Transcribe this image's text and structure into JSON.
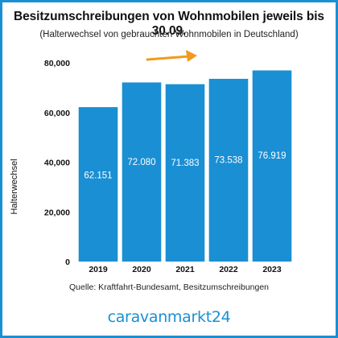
{
  "chart_data": {
    "type": "bar",
    "title": "Besitzumschreibungen von Wohnmobilen jeweils bis 30.09.",
    "subtitle": "(Halterwechsel von gebrauchten Wohnmobilen in Deutschland)",
    "ylabel": "Halterwechsel",
    "xlabel": "",
    "categories": [
      "2019",
      "2020",
      "2021",
      "2022",
      "2023"
    ],
    "values": [
      62151,
      72080,
      71383,
      73538,
      76919
    ],
    "data_labels": [
      "62.151",
      "72.080",
      "71.383",
      "73.538",
      "76.919"
    ],
    "ylim": [
      0,
      80000
    ],
    "yticks": [
      0,
      20000,
      40000,
      60000,
      80000
    ],
    "ytick_labels": [
      "0",
      "20,000",
      "40,000",
      "60,000",
      "80,000"
    ],
    "grid": false,
    "bar_color": "#1a8fd4",
    "arrow_color": "#f29a1f"
  },
  "source": "Quelle: Kraftfahrt-Bundesamt, Besitzumschreibungen",
  "brand": "caravanmarkt24",
  "colors": {
    "border": "#1a8fd4",
    "brand": "#1a8fd4"
  }
}
